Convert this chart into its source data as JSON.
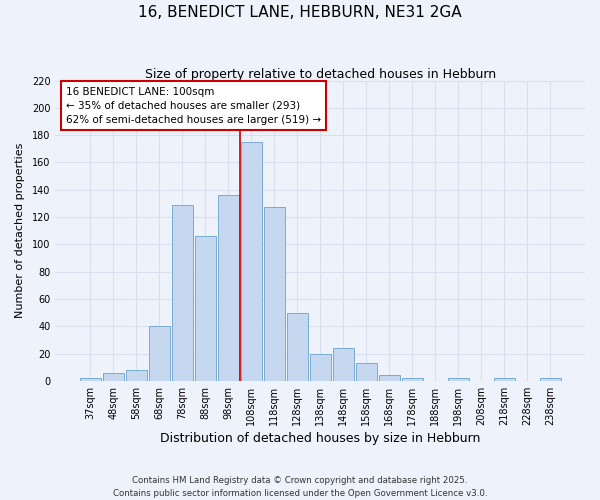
{
  "title": "16, BENEDICT LANE, HEBBURN, NE31 2GA",
  "subtitle": "Size of property relative to detached houses in Hebburn",
  "xlabel": "Distribution of detached houses by size in Hebburn",
  "ylabel": "Number of detached properties",
  "bar_labels": [
    "37sqm",
    "48sqm",
    "58sqm",
    "68sqm",
    "78sqm",
    "88sqm",
    "98sqm",
    "108sqm",
    "118sqm",
    "128sqm",
    "138sqm",
    "148sqm",
    "158sqm",
    "168sqm",
    "178sqm",
    "188sqm",
    "198sqm",
    "208sqm",
    "218sqm",
    "228sqm",
    "238sqm"
  ],
  "bar_values": [
    2,
    6,
    8,
    40,
    129,
    106,
    136,
    175,
    127,
    50,
    20,
    24,
    13,
    4,
    2,
    0,
    2,
    0,
    2,
    0,
    2
  ],
  "bar_color": "#c5d8f0",
  "bar_edge_color": "#7aabce",
  "vline_x_index": 6.5,
  "vline_color": "#cc0000",
  "annotation_title": "16 BENEDICT LANE: 100sqm",
  "annotation_line1": "← 35% of detached houses are smaller (293)",
  "annotation_line2": "62% of semi-detached houses are larger (519) →",
  "annotation_box_color": "#ffffff",
  "annotation_box_edge": "#cc0000",
  "ylim_max": 220,
  "yticks": [
    0,
    20,
    40,
    60,
    80,
    100,
    120,
    140,
    160,
    180,
    200,
    220
  ],
  "footnote1": "Contains HM Land Registry data © Crown copyright and database right 2025.",
  "footnote2": "Contains public sector information licensed under the Open Government Licence v3.0.",
  "bg_color": "#eef2fb",
  "grid_color": "#d8e0f0",
  "title_fontsize": 11,
  "subtitle_fontsize": 9,
  "xlabel_fontsize": 9,
  "ylabel_fontsize": 8,
  "annot_fontsize": 7.5,
  "tick_fontsize": 7
}
